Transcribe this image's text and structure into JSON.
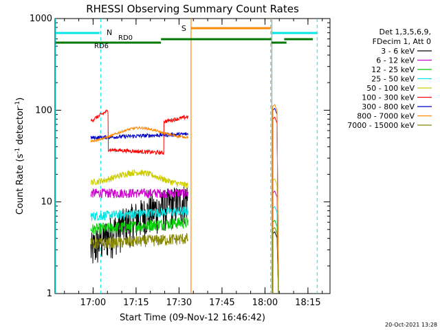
{
  "chart_data": {
    "type": "line",
    "title": "RHESSI Observing Summary Count Rates",
    "xlabel": "Start Time (09-Nov-12 16:46:42)",
    "ylabel_main": "Count Rate (s",
    "ylabel_sup1": "-1",
    "ylabel_mid": " detector",
    "ylabel_sup2": "-1",
    "ylabel_end": ")",
    "yscale": "log",
    "ylim": [
      1,
      1000
    ],
    "xlim_minutes": [
      0,
      96
    ],
    "x_ticks": [
      {
        "label": "17:00",
        "min": 13.3
      },
      {
        "label": "17:15",
        "min": 28.3
      },
      {
        "label": "17:30",
        "min": 43.3
      },
      {
        "label": "17:45",
        "min": 58.3
      },
      {
        "label": "18:00",
        "min": 73.3
      },
      {
        "label": "18:15",
        "min": 88.3
      }
    ],
    "y_ticks": [
      {
        "label": "1",
        "value": 1
      },
      {
        "label": "10",
        "value": 10
      },
      {
        "label": "100",
        "value": 100
      },
      {
        "label": "1000",
        "value": 1000
      }
    ],
    "legend_header": [
      "Det 1,3,5,6,9,",
      "FDecim 1, Att 0"
    ],
    "legend_position": "right",
    "series": [
      {
        "name": "3 - 6 keV",
        "color": "#000000",
        "start": 3.0,
        "end": 11.0,
        "pk": 4.5,
        "slope": 0.0,
        "noise": 0.5
      },
      {
        "name": "6 - 12 keV",
        "color": "#cc00cc",
        "start": 12.5,
        "end": 12.5,
        "pk": 12.5,
        "slope": 0.0,
        "noise": 0.12
      },
      {
        "name": "12 - 25 keV",
        "color": "#00cc00",
        "start": 5.0,
        "end": 6.0,
        "pk": 6.0,
        "slope": 0.0,
        "noise": 0.15
      },
      {
        "name": "25 - 50 keV",
        "color": "#00e5e5",
        "start": 7.0,
        "end": 8.0,
        "pk": 8.5,
        "slope": 0.0,
        "noise": 0.12
      },
      {
        "name": "50 - 100 keV",
        "color": "#cccc00",
        "start": 16.0,
        "end": 15.0,
        "pk": 17.0,
        "slope": 0.0,
        "noise": 0.08
      },
      {
        "name": "100 - 300 keV",
        "color": "#ff0000",
        "start": 38.0,
        "end": 33.0,
        "pk": 80.0,
        "slope": 0.35,
        "noise": 0.05
      },
      {
        "name": "300 - 800 keV",
        "color": "#0000cc",
        "start": 50.0,
        "end": 55.0,
        "pk": 100.0,
        "slope": 0.0,
        "noise": 0.05
      },
      {
        "name": "800 - 7000 keV",
        "color": "#ff8800",
        "start": 45.0,
        "end": 50.0,
        "pk": 110.0,
        "slope": 0.0,
        "noise": 0.03
      },
      {
        "name": "7000 - 15000 keV",
        "color": "#888800",
        "start": 3.5,
        "end": 4.0,
        "pk": 5.0,
        "slope": 0.0,
        "noise": 0.15
      }
    ],
    "data_window_1": [
      12.5,
      46.5
    ],
    "data_window_2": [
      76.0,
      78.0
    ],
    "markers": {
      "N_label": "N",
      "S_label": "S",
      "RD0_label": "RD0",
      "RD6_label": "RD6",
      "night_minutes": [
        0.2,
        16.0,
        75.7,
        91.5
      ],
      "saa_minutes": [
        47.5,
        75.3
      ],
      "rd0_segments": [
        [
          37.0,
          75.5
        ],
        [
          80.0,
          90.0
        ]
      ],
      "rd6_segments": [
        [
          0.2,
          37.0
        ],
        [
          75.5,
          80.8
        ]
      ]
    },
    "colors": {
      "night": "#00e5e5",
      "saa": "#ff8800",
      "decim": "#007700",
      "axes": "#000000"
    },
    "timestamp": "20-Oct-2021 13:28"
  }
}
